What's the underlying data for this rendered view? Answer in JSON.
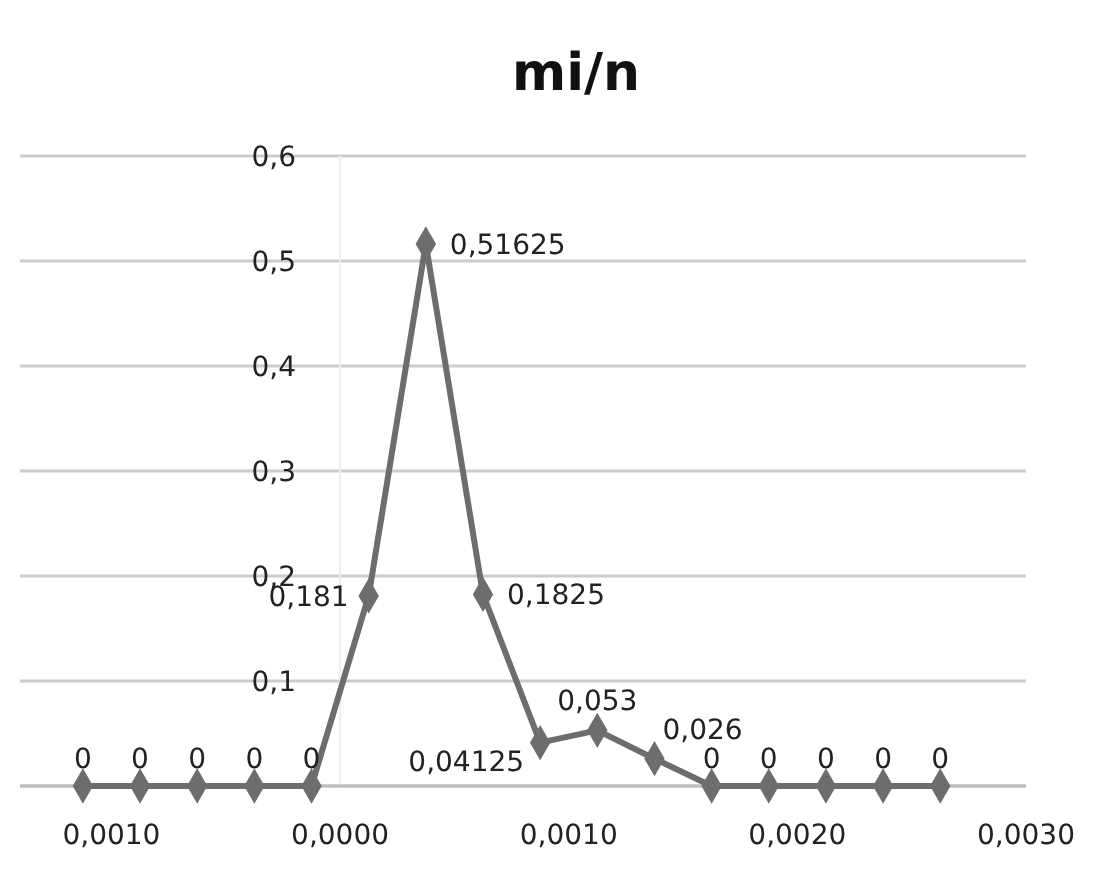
{
  "chart_data": {
    "type": "line",
    "title": "mi/n",
    "x": [
      -0.001125,
      -0.000875,
      -0.000625,
      -0.000375,
      -0.000125,
      0.000125,
      0.000375,
      0.000625,
      0.000875,
      0.001125,
      0.001375,
      0.001625,
      0.001875,
      0.002125,
      0.002375,
      0.002625
    ],
    "series": [
      {
        "color": "#6d6d6d",
        "values": [
          0,
          0,
          0,
          0,
          0,
          0.181,
          0.51625,
          0.1825,
          0.04125,
          0.053,
          0.026,
          0,
          0,
          0,
          0,
          0
        ],
        "value_labels": [
          "0",
          "0",
          "0",
          "0",
          "0",
          "0,181",
          "0,51625",
          "0,1825",
          "0,04125",
          "0,053",
          "0,026",
          "0",
          "0",
          "0",
          "0",
          "0"
        ]
      }
    ],
    "xlim": [
      -0.0014,
      0.003
    ],
    "xticks": [
      {
        "value": -0.001,
        "label": "0,0010"
      },
      {
        "value": 0,
        "label": "0,0000"
      },
      {
        "value": 0.001,
        "label": "0,0010"
      },
      {
        "value": 0.002,
        "label": "0,0020"
      },
      {
        "value": 0.003,
        "label": "0,0030"
      }
    ],
    "ylim": [
      0,
      0.6
    ],
    "yticks": [
      {
        "value": 0,
        "label": null
      },
      {
        "value": 0.1,
        "label": "0,1"
      },
      {
        "value": 0.2,
        "label": "0,2"
      },
      {
        "value": 0.3,
        "label": "0,3"
      },
      {
        "value": 0.4,
        "label": "0,4"
      },
      {
        "value": 0.5,
        "label": "0,5"
      },
      {
        "value": 0.6,
        "label": "0,6"
      }
    ],
    "grid": "y",
    "marker": "diamond",
    "line_style": "solid"
  }
}
